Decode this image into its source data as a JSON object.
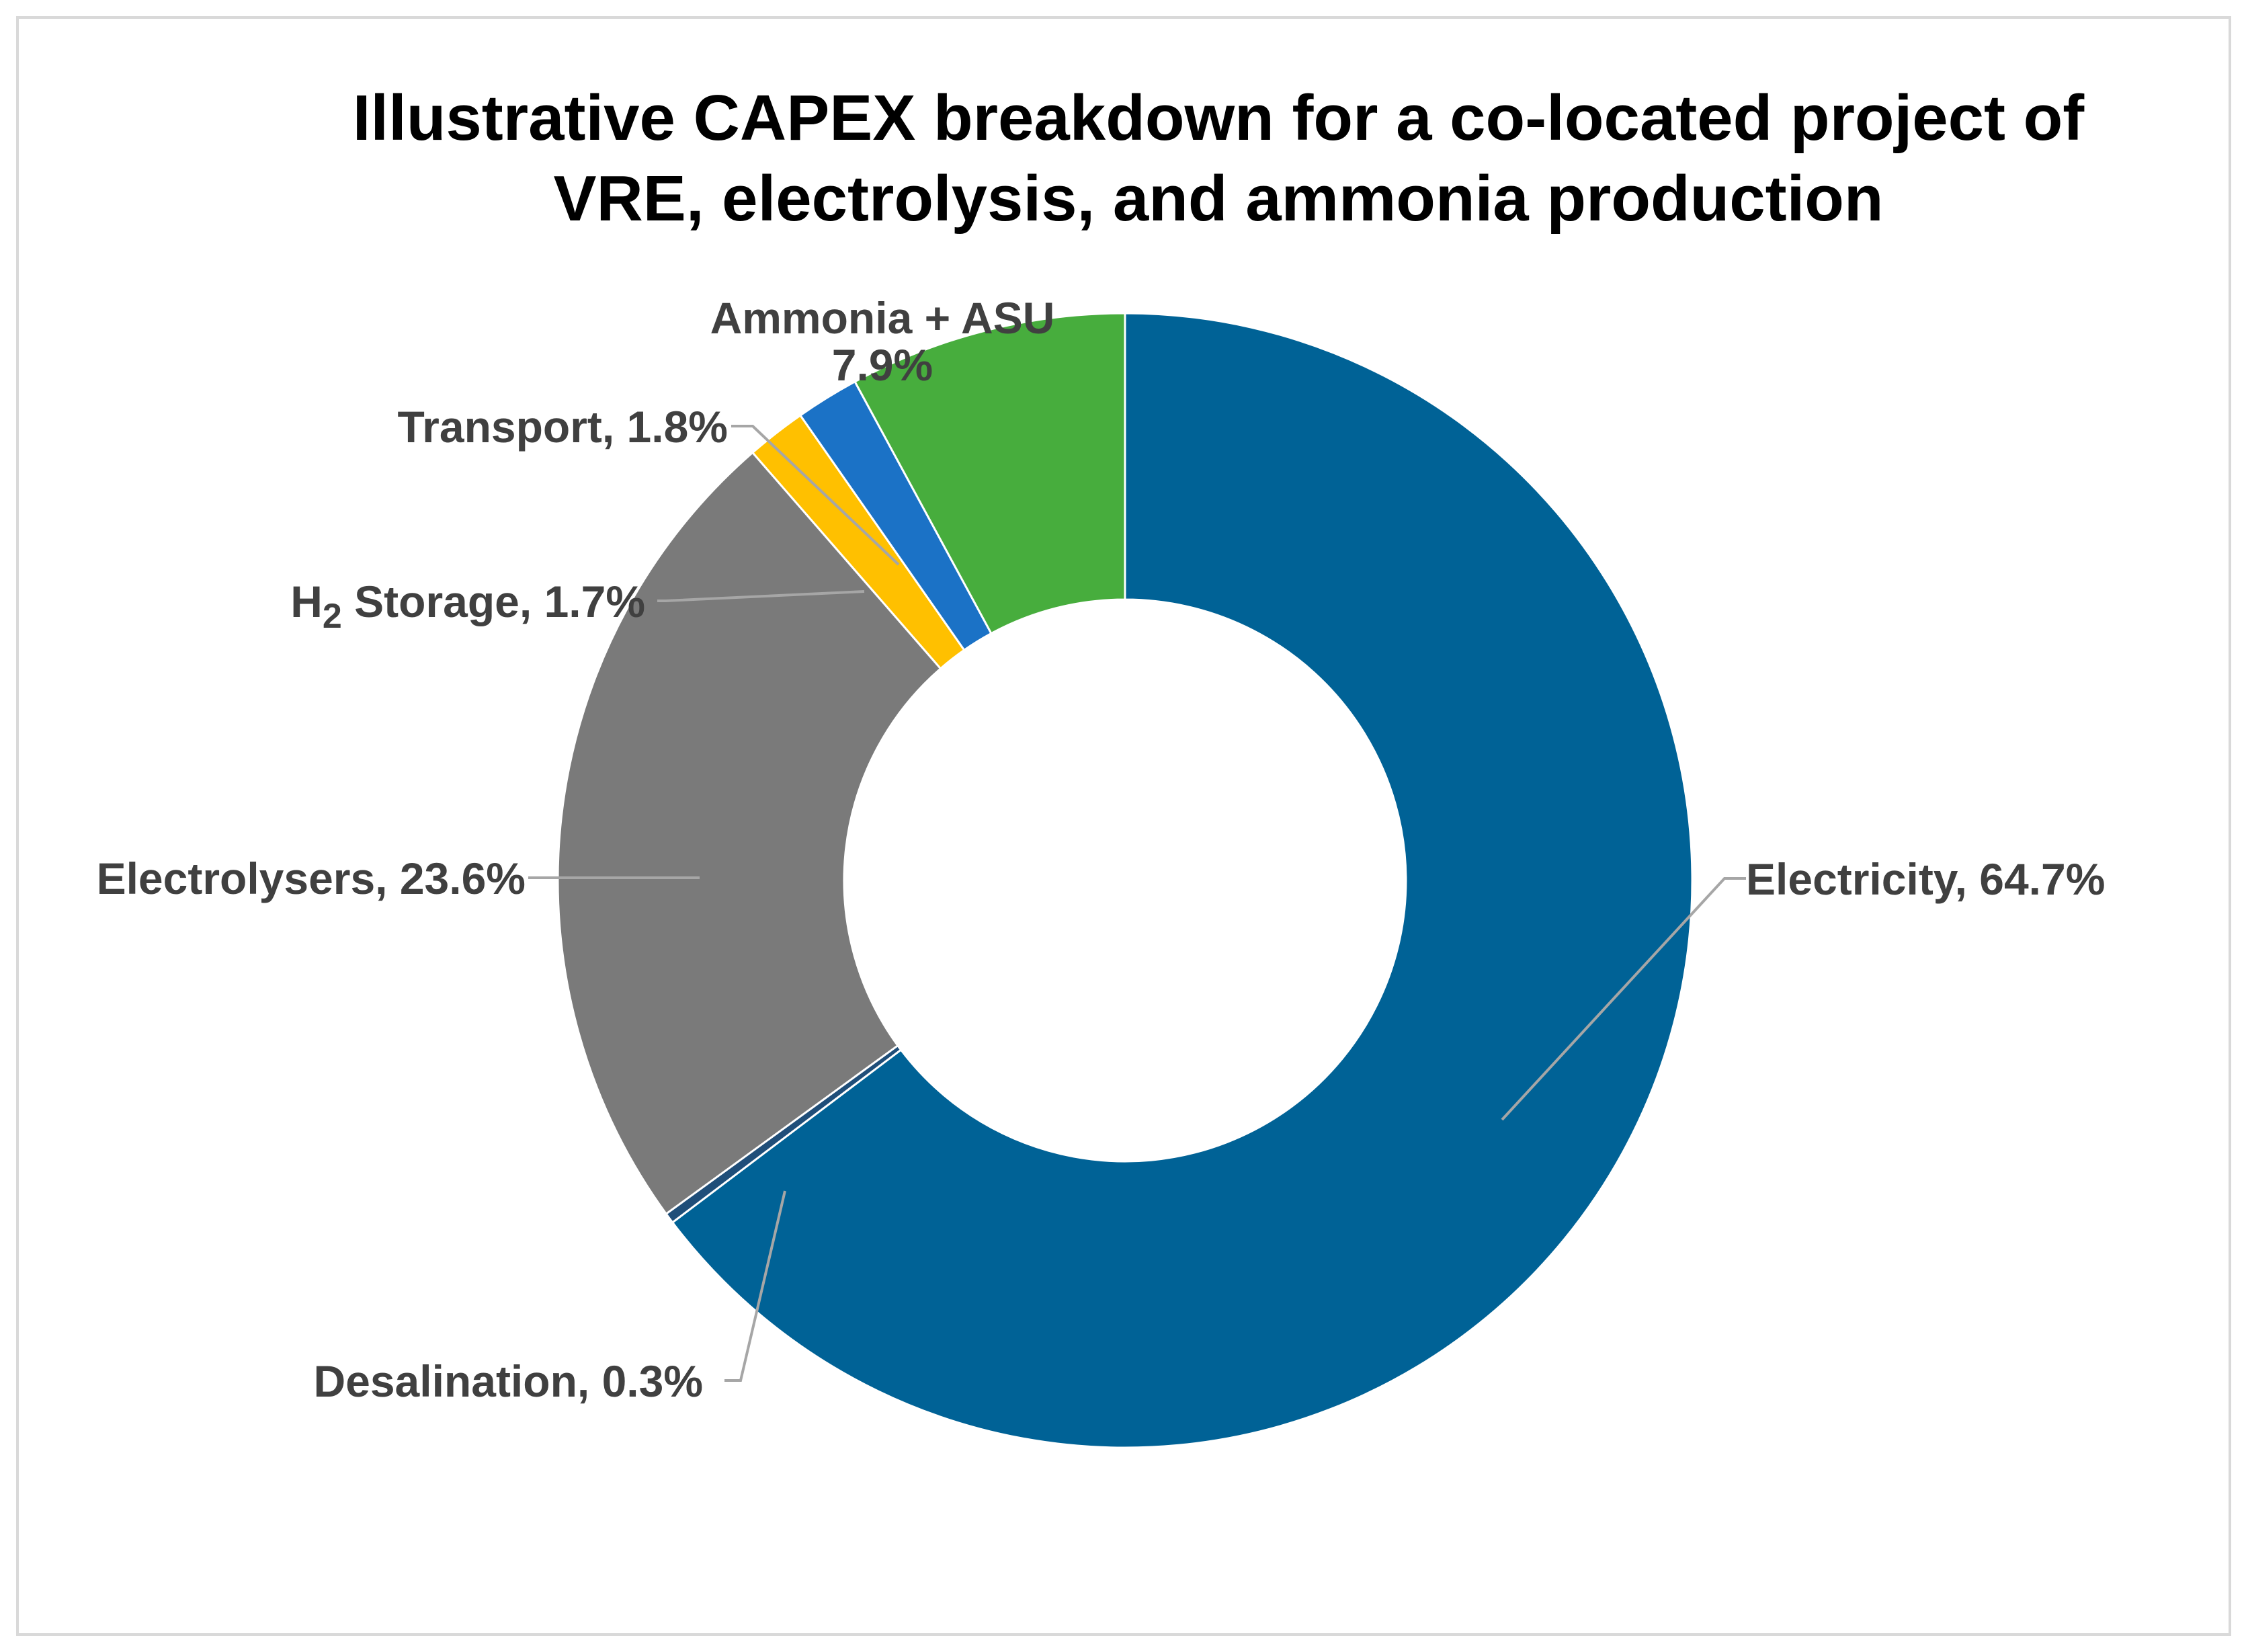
{
  "chart_data": {
    "type": "pie",
    "variant": "doughnut",
    "title_lines": [
      "Illustrative CAPEX breakdown for a co-located project of",
      "VRE, electrolysis, and ammonia production"
    ],
    "unit": "%",
    "slices": [
      {
        "name": "Electricity",
        "value": 64.7,
        "color": "#006296",
        "label": "Electricity, 64.7%"
      },
      {
        "name": "Desalination",
        "value": 0.3,
        "color": "#1f4e79",
        "label": "Desalination, 0.3%"
      },
      {
        "name": "Electrolysers",
        "value": 23.6,
        "color": "#7a7a7a",
        "label": "Electrolysers, 23.6%"
      },
      {
        "name": "H2 Storage",
        "value": 1.7,
        "color": "#ffc000",
        "label_main": "H",
        "label_sub": "2",
        "label_rest": " Storage, 1.7%"
      },
      {
        "name": "Transport",
        "value": 1.8,
        "color": "#1b72c6",
        "label": "Transport, 1.8%"
      },
      {
        "name": "Ammonia + ASU",
        "value": 7.9,
        "color": "#47ad3d",
        "label_line1": "Ammonia + ASU",
        "label_line2": "7.9%"
      }
    ]
  }
}
